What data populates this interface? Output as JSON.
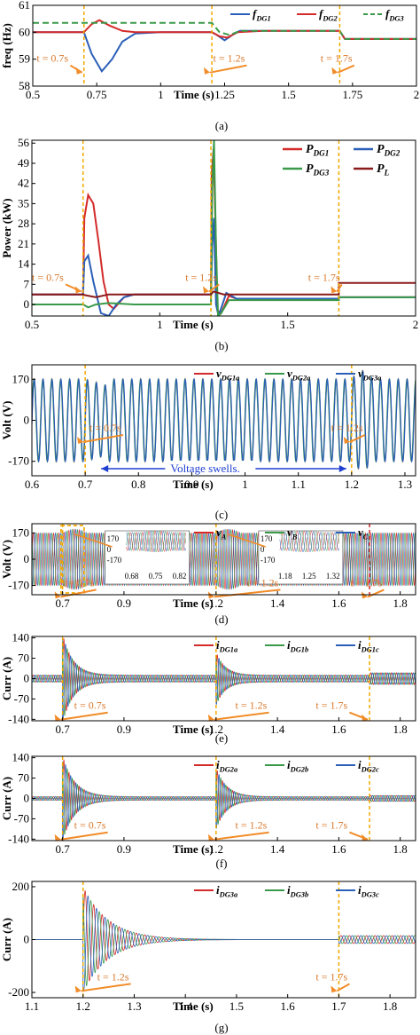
{
  "figure": {
    "colors": {
      "red": "#d42a2a",
      "blue": "#2b5fb8",
      "green": "#3a9a4a",
      "darkred": "#8b1a1a",
      "marker": "#f2a900",
      "arrow": "#f28c28",
      "annot": "#d9782b",
      "swell": "#1f3fd0"
    }
  },
  "chart_data": [
    {
      "id": "a",
      "type": "line",
      "caption": "(a)",
      "xlabel": "Time (s)",
      "ylabel": "freq (Hz)",
      "xlim": [
        0.5,
        2.0
      ],
      "ylim": [
        58,
        61
      ],
      "xticks": [
        "0.5",
        "0.75",
        "1",
        "1.25",
        "1.5",
        "1.75",
        "2"
      ],
      "xtick_vals": [
        0.5,
        0.75,
        1,
        1.25,
        1.5,
        1.75,
        2
      ],
      "yticks": [
        "58",
        "59",
        "60",
        "61"
      ],
      "ytick_vals": [
        58,
        59,
        60,
        61
      ],
      "legend": [
        {
          "base": "f",
          "sub": "DG1",
          "color": "#2b5fb8",
          "dash": false
        },
        {
          "base": "f",
          "sub": "DG2",
          "color": "#d42a2a",
          "dash": false
        },
        {
          "base": "f",
          "sub": "DG3",
          "color": "#3a9a4a",
          "dash": true
        }
      ],
      "markers": [
        0.7,
        1.2,
        1.7
      ],
      "annotations": [
        "t = 0.7s",
        "t = 1.2s",
        "t = 1.7s"
      ],
      "series": [
        {
          "name": "fDG1",
          "color": "#2b5fb8",
          "dash": false,
          "points": [
            [
              0.5,
              60
            ],
            [
              0.7,
              60
            ],
            [
              0.73,
              59.2
            ],
            [
              0.77,
              58.55
            ],
            [
              0.81,
              59.0
            ],
            [
              0.85,
              59.65
            ],
            [
              0.9,
              59.95
            ],
            [
              1.0,
              60
            ],
            [
              1.2,
              60
            ],
            [
              1.22,
              59.9
            ],
            [
              1.25,
              59.7
            ],
            [
              1.28,
              59.9
            ],
            [
              1.31,
              60.05
            ],
            [
              1.4,
              60.05
            ],
            [
              1.7,
              60.05
            ],
            [
              1.72,
              59.75
            ],
            [
              2.0,
              59.75
            ]
          ]
        },
        {
          "name": "fDG2",
          "color": "#d42a2a",
          "dash": false,
          "points": [
            [
              0.5,
              60
            ],
            [
              0.7,
              60
            ],
            [
              0.73,
              60.3
            ],
            [
              0.76,
              60.45
            ],
            [
              0.8,
              60.25
            ],
            [
              0.85,
              60.05
            ],
            [
              0.9,
              60
            ],
            [
              1.2,
              60
            ],
            [
              1.23,
              59.85
            ],
            [
              1.26,
              59.8
            ],
            [
              1.3,
              60.0
            ],
            [
              1.4,
              60.05
            ],
            [
              1.7,
              60.05
            ],
            [
              1.72,
              59.75
            ],
            [
              2.0,
              59.75
            ]
          ]
        },
        {
          "name": "fDG3",
          "color": "#3a9a4a",
          "dash": true,
          "points": [
            [
              0.5,
              60.35
            ],
            [
              1.2,
              60.35
            ],
            [
              1.23,
              60.0
            ],
            [
              1.27,
              59.9
            ],
            [
              1.31,
              60.05
            ],
            [
              1.4,
              60.05
            ],
            [
              1.7,
              60.05
            ],
            [
              1.72,
              59.75
            ],
            [
              2.0,
              59.75
            ]
          ]
        }
      ]
    },
    {
      "id": "b",
      "type": "line",
      "caption": "(b)",
      "xlabel": "Time (s)",
      "ylabel": "Power (kW)",
      "xlim": [
        0.5,
        2.0
      ],
      "ylim": [
        -4,
        57
      ],
      "xticks": [
        "0.5",
        "1",
        "1.5",
        "2"
      ],
      "xtick_vals": [
        0.5,
        1,
        1.5,
        2
      ],
      "yticks": [
        "0",
        "7",
        "14",
        "21",
        "28",
        "35",
        "42",
        "49",
        "56"
      ],
      "ytick_vals": [
        0,
        7,
        14,
        21,
        28,
        35,
        42,
        49,
        56
      ],
      "legend": [
        {
          "base": "P",
          "sub": "DG1",
          "color": "#d42a2a"
        },
        {
          "base": "P",
          "sub": "DG2",
          "color": "#2b5fb8"
        },
        {
          "base": "P",
          "sub": "DG3",
          "color": "#3a9a4a"
        },
        {
          "base": "P",
          "sub": "L",
          "color": "#8b1a1a"
        }
      ],
      "markers": [
        0.7,
        1.2,
        1.7
      ],
      "annotations": [
        "t = 0.7s",
        "t = 1.2s",
        "t = 1.7s"
      ],
      "series": [
        {
          "name": "PDG1",
          "color": "#d42a2a",
          "points": [
            [
              0.5,
              3.5
            ],
            [
              0.7,
              3.5
            ],
            [
              0.705,
              30
            ],
            [
              0.72,
              38
            ],
            [
              0.74,
              35
            ],
            [
              0.76,
              22
            ],
            [
              0.78,
              8
            ],
            [
              0.8,
              0
            ],
            [
              0.82,
              -1.5
            ],
            [
              0.86,
              2.5
            ],
            [
              0.9,
              3.5
            ],
            [
              1.2,
              3.5
            ],
            [
              1.203,
              45
            ],
            [
              1.21,
              54
            ],
            [
              1.22,
              20
            ],
            [
              1.225,
              -2
            ],
            [
              1.24,
              -3
            ],
            [
              1.27,
              3
            ],
            [
              1.3,
              2
            ],
            [
              1.7,
              2
            ],
            [
              1.7,
              2.5
            ],
            [
              2.0,
              2.5
            ]
          ]
        },
        {
          "name": "PDG2",
          "color": "#2b5fb8",
          "points": [
            [
              0.5,
              3.5
            ],
            [
              0.7,
              3.5
            ],
            [
              0.705,
              15
            ],
            [
              0.72,
              17
            ],
            [
              0.74,
              8
            ],
            [
              0.77,
              -3
            ],
            [
              0.8,
              -4
            ],
            [
              0.83,
              0
            ],
            [
              0.86,
              2.5
            ],
            [
              0.9,
              3.5
            ],
            [
              1.2,
              3.5
            ],
            [
              1.205,
              20
            ],
            [
              1.212,
              30
            ],
            [
              1.22,
              0
            ],
            [
              1.23,
              -4
            ],
            [
              1.26,
              4
            ],
            [
              1.28,
              3
            ],
            [
              1.3,
              2
            ],
            [
              1.7,
              2
            ],
            [
              1.7,
              2.5
            ],
            [
              2.0,
              2.5
            ]
          ]
        },
        {
          "name": "PDG3",
          "color": "#3a9a4a",
          "points": [
            [
              0.5,
              0
            ],
            [
              0.7,
              0
            ],
            [
              0.72,
              -1
            ],
            [
              0.75,
              0
            ],
            [
              0.8,
              0.5
            ],
            [
              0.9,
              0
            ],
            [
              1.2,
              0
            ],
            [
              1.205,
              40
            ],
            [
              1.212,
              57
            ],
            [
              1.22,
              20
            ],
            [
              1.228,
              -4
            ],
            [
              1.24,
              -3
            ],
            [
              1.27,
              1.5
            ],
            [
              1.3,
              1.5
            ],
            [
              1.7,
              1.5
            ],
            [
              1.7,
              2.5
            ],
            [
              2.0,
              2.5
            ]
          ]
        },
        {
          "name": "PL",
          "color": "#8b1a1a",
          "points": [
            [
              0.5,
              3.5
            ],
            [
              0.7,
              3.5
            ],
            [
              0.71,
              3.2
            ],
            [
              0.75,
              2.5
            ],
            [
              0.8,
              3.5
            ],
            [
              1.2,
              3.5
            ],
            [
              1.21,
              4.5
            ],
            [
              1.25,
              3.5
            ],
            [
              1.7,
              3.5
            ],
            [
              1.7,
              7.5
            ],
            [
              2.0,
              7.5
            ]
          ]
        }
      ]
    },
    {
      "id": "c",
      "type": "line",
      "caption": "(c)",
      "xlabel": "Time (s)",
      "ylabel": "Volt (V)",
      "xlim": [
        0.6,
        1.32
      ],
      "ylim": [
        -230,
        230
      ],
      "xticks": [
        "0.6",
        "0.7",
        "0.8",
        "0.9",
        "1",
        "1.1",
        "1.2",
        "1.3"
      ],
      "xtick_vals": [
        0.6,
        0.7,
        0.8,
        0.9,
        1.0,
        1.1,
        1.2,
        1.3
      ],
      "yticks": [
        "170",
        "0",
        "-170"
      ],
      "ytick_vals": [
        170,
        0,
        -170
      ],
      "legend": [
        {
          "base": "v",
          "sub": "DG1a",
          "color": "#d42a2a"
        },
        {
          "base": "v",
          "sub": "DG2a",
          "color": "#3a9a4a"
        },
        {
          "base": "v",
          "sub": "DG3a",
          "color": "#2b5fb8"
        }
      ],
      "markers": [
        0.7,
        1.2
      ],
      "annotations": [
        "t = 0.7s",
        "t = 1.2s"
      ],
      "swell_label": "Voltage swells.",
      "wave": {
        "freq": 60,
        "amp": 170,
        "swell_amp": 190
      }
    },
    {
      "id": "d",
      "type": "line",
      "caption": "(d)",
      "xlabel": "Time (s)",
      "ylabel": "Volt (V)",
      "xlim": [
        0.6,
        1.85
      ],
      "ylim": [
        -230,
        230
      ],
      "xticks": [
        "0.7",
        "0.9",
        "1.2",
        "1.4",
        "1.6",
        "1.8"
      ],
      "xtick_vals": [
        0.7,
        0.9,
        1.2,
        1.4,
        1.6,
        1.8
      ],
      "yticks": [
        "170",
        "0",
        "-170"
      ],
      "ytick_vals": [
        170,
        0,
        -170
      ],
      "legend": [
        {
          "base": "v",
          "sub": "A",
          "color": "#d42a2a"
        },
        {
          "base": "v",
          "sub": "B",
          "color": "#3a9a4a"
        },
        {
          "base": "v",
          "sub": "C",
          "color": "#2b5fb8"
        }
      ],
      "markers": [
        0.7,
        1.2,
        1.7
      ],
      "annotations": [
        "t = 0.7s",
        "t = 1.2s",
        "t = 1.7s"
      ],
      "inset1": {
        "yticks": [
          "170",
          "0",
          "-170"
        ],
        "xticks": [
          "0.68",
          "0.75",
          "0.82"
        ]
      },
      "inset2": {
        "yticks": [
          "170",
          "0",
          "-170"
        ],
        "xticks": [
          "1.18",
          "1.25",
          "1.32"
        ]
      }
    },
    {
      "id": "e",
      "type": "line",
      "caption": "(e)",
      "xlabel": "Time (s)",
      "ylabel": "Curr (A)",
      "xlim": [
        0.6,
        1.85
      ],
      "ylim": [
        -145,
        145
      ],
      "xticks": [
        "0.7",
        "0.9",
        "1.2",
        "1.4",
        "1.6",
        "1.8"
      ],
      "xtick_vals": [
        0.7,
        0.9,
        1.2,
        1.4,
        1.6,
        1.8
      ],
      "yticks": [
        "140",
        "70",
        "0",
        "-70",
        "-140"
      ],
      "ytick_vals": [
        140,
        70,
        0,
        -70,
        -140
      ],
      "legend": [
        {
          "base": "i",
          "sub": "DG1a",
          "color": "#d42a2a"
        },
        {
          "base": "i",
          "sub": "DG1b",
          "color": "#3a9a4a"
        },
        {
          "base": "i",
          "sub": "DG1c",
          "color": "#2b5fb8"
        }
      ],
      "markers": [
        0.7,
        1.2,
        1.7
      ],
      "annotations": [
        "t = 0.7s",
        "t = 1.2s",
        "t = 1.7s"
      ],
      "events": [
        {
          "t": 0.7,
          "amp": 140,
          "tau": 0.035,
          "dur": 0.25
        },
        {
          "t": 1.2,
          "amp": 80,
          "tau": 0.03,
          "dur": 0.2
        }
      ],
      "base_amp": 12,
      "post_amp": 20,
      "post_t": 1.7
    },
    {
      "id": "f",
      "type": "line",
      "caption": "(f)",
      "xlabel": "Time (s)",
      "ylabel": "Curr (A)",
      "xlim": [
        0.6,
        1.85
      ],
      "ylim": [
        -145,
        145
      ],
      "xticks": [
        "0.7",
        "0.9",
        "1.2",
        "1.4",
        "1.6",
        "1.8"
      ],
      "xtick_vals": [
        0.7,
        0.9,
        1.2,
        1.4,
        1.6,
        1.8
      ],
      "yticks": [
        "140",
        "70",
        "0",
        "-70",
        "-140"
      ],
      "ytick_vals": [
        140,
        70,
        0,
        -70,
        -140
      ],
      "legend": [
        {
          "base": "i",
          "sub": "DG2a",
          "color": "#d42a2a"
        },
        {
          "base": "i",
          "sub": "DG2b",
          "color": "#3a9a4a"
        },
        {
          "base": "i",
          "sub": "DG2c",
          "color": "#2b5fb8"
        }
      ],
      "markers": [
        0.7,
        1.2,
        1.7
      ],
      "annotations": [
        "t = 0.7s",
        "t = 1.2s",
        "t = 1.7s"
      ],
      "events": [
        {
          "t": 0.7,
          "amp": 140,
          "tau": 0.04,
          "dur": 0.28
        },
        {
          "t": 1.2,
          "amp": 100,
          "tau": 0.035,
          "dur": 0.22
        }
      ],
      "base_amp": 6,
      "post_amp": 10,
      "post_t": 1.7
    },
    {
      "id": "g",
      "type": "line",
      "caption": "(g)",
      "xlabel": "Time (s)",
      "ylabel": "Curr (A)",
      "xlim": [
        1.1,
        1.85
      ],
      "ylim": [
        -220,
        220
      ],
      "xticks": [
        "1.1",
        "1.2",
        "1.3",
        "1.4",
        "1.5",
        "1.6",
        "1.7",
        "1.8"
      ],
      "xtick_vals": [
        1.1,
        1.2,
        1.3,
        1.4,
        1.5,
        1.6,
        1.7,
        1.8
      ],
      "yticks": [
        "200",
        "0",
        "-200"
      ],
      "ytick_vals": [
        200,
        0,
        -200
      ],
      "legend": [
        {
          "base": "i",
          "sub": "DG3a",
          "color": "#d42a2a"
        },
        {
          "base": "i",
          "sub": "DG3b",
          "color": "#3a9a4a"
        },
        {
          "base": "i",
          "sub": "DG3c",
          "color": "#2b5fb8"
        }
      ],
      "markers": [
        1.2,
        1.7
      ],
      "annotations": [
        "t = 1.2s",
        "t = 1.7s"
      ],
      "events": [
        {
          "t": 1.2,
          "amp": 200,
          "tau": 0.05,
          "dur": 0.3
        }
      ],
      "base_amp": 0,
      "post_amp": 15,
      "post_t": 1.7
    }
  ]
}
